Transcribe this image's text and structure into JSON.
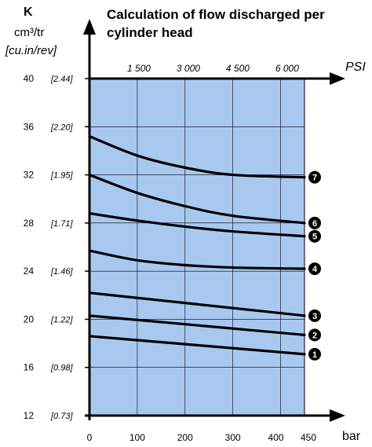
{
  "chart_data": {
    "type": "line",
    "title": "Calculation of flow discharged per cylinder head",
    "ylabel": "K",
    "ylabel_unit": "cm³/tr",
    "ylabel_unit_alt": "[cu.in/rev]",
    "xlabel": "bar",
    "x2label": "PSI",
    "xlim": [
      0,
      450
    ],
    "ylim": [
      12,
      40
    ],
    "x_ticks": [
      "0",
      "100",
      "200",
      "300",
      "400",
      "450"
    ],
    "x2_ticks": [
      "1 500",
      "3 000",
      "4 500",
      "6 000"
    ],
    "y_ticks": [
      "12",
      "16",
      "20",
      "24",
      "28",
      "32",
      "36",
      "40"
    ],
    "y_ticks_alt": [
      "[0.73]",
      "[0.98]",
      "[1.22]",
      "[1.46]",
      "[1.71]",
      "[1.95]",
      "[2.20]",
      "[2.44]"
    ],
    "grid": true,
    "plot_bg": "#a8c8f0",
    "line_color": "#000000",
    "series": [
      {
        "name": "1",
        "x": [
          0,
          450
        ],
        "y": [
          18.6,
          17.1
        ]
      },
      {
        "name": "2",
        "x": [
          0,
          450
        ],
        "y": [
          20.3,
          18.7
        ]
      },
      {
        "name": "3",
        "x": [
          0,
          450
        ],
        "y": [
          22.2,
          20.3
        ]
      },
      {
        "name": "4",
        "x": [
          0,
          100,
          200,
          300,
          450
        ],
        "y": [
          25.7,
          24.9,
          24.5,
          24.3,
          24.2
        ]
      },
      {
        "name": "5",
        "x": [
          0,
          100,
          200,
          300,
          450
        ],
        "y": [
          28.8,
          28.2,
          27.7,
          27.3,
          26.9
        ]
      },
      {
        "name": "6",
        "x": [
          0,
          100,
          200,
          300,
          450
        ],
        "y": [
          32.0,
          30.5,
          29.4,
          28.6,
          28.0
        ]
      },
      {
        "name": "7",
        "x": [
          0,
          100,
          200,
          300,
          450
        ],
        "y": [
          35.2,
          33.6,
          32.6,
          32.0,
          31.8
        ]
      }
    ]
  }
}
